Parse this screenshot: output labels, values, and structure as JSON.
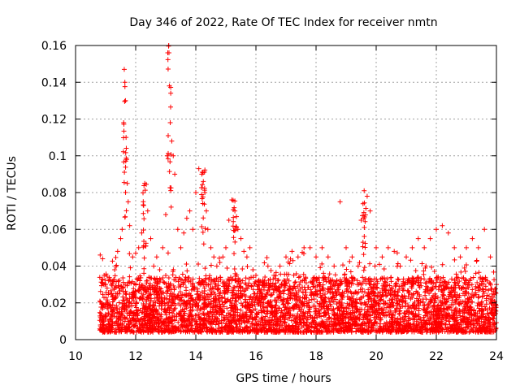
{
  "chart_data": {
    "type": "scatter",
    "title": "Day 346 of 2022, Rate Of TEC Index for receiver nmtn",
    "xlabel": "GPS time / hours",
    "ylabel": "ROTI / TECUs",
    "xlim": [
      10,
      24
    ],
    "ylim": [
      0,
      0.16
    ],
    "xticks": [
      10,
      12,
      14,
      16,
      18,
      20,
      22,
      24
    ],
    "xtick_labels": [
      "10",
      "12",
      "14",
      "16",
      "18",
      "20",
      "22",
      "24"
    ],
    "yticks": [
      0,
      0.02,
      0.04,
      0.06,
      0.08,
      0.1,
      0.12,
      0.14,
      0.16
    ],
    "ytick_labels": [
      "0",
      "0.02",
      "0.04",
      "0.06",
      "0.08",
      "0.1",
      "0.12",
      "0.14",
      "0.16"
    ],
    "grid": true,
    "marker": "plus",
    "color": "#ff0000",
    "series": [
      {
        "name": "ROTI",
        "description_of_density": "dense band 0.005-0.03 TECU/s from 10.8h to 24h",
        "x": [
          10.82,
          10.9,
          10.95,
          11.0,
          11.05,
          11.1,
          11.2,
          11.3,
          11.4,
          11.5,
          11.55,
          11.6,
          11.62,
          11.64,
          11.66,
          11.68,
          11.7,
          11.72,
          11.75,
          11.8,
          11.9,
          12.0,
          12.1,
          12.2,
          12.3,
          12.4,
          12.5,
          12.6,
          12.7,
          12.8,
          12.9,
          13.0,
          13.05,
          13.1,
          13.12,
          13.15,
          13.2,
          13.25,
          13.3,
          13.4,
          13.5,
          13.6,
          13.7,
          13.8,
          13.9,
          14.0,
          14.1,
          14.2,
          14.25,
          14.3,
          14.35,
          14.4,
          14.5,
          14.6,
          14.7,
          14.8,
          14.9,
          15.0,
          15.1,
          15.2,
          15.3,
          15.4,
          15.5,
          15.6,
          15.7,
          15.8,
          15.9,
          16.0,
          16.2,
          16.4,
          16.6,
          16.8,
          17.0,
          17.2,
          17.4,
          17.6,
          17.8,
          18.0,
          18.2,
          18.4,
          18.6,
          18.8,
          19.0,
          19.2,
          19.4,
          19.5,
          19.6,
          19.7,
          19.8,
          20.0,
          20.2,
          20.4,
          20.6,
          20.8,
          21.0,
          21.2,
          21.4,
          21.6,
          21.8,
          22.0,
          22.2,
          22.4,
          22.6,
          22.8,
          23.0,
          23.2,
          23.4,
          23.6,
          23.8,
          24.0
        ],
        "y": [
          0.046,
          0.044,
          0.035,
          0.03,
          0.028,
          0.032,
          0.025,
          0.038,
          0.048,
          0.055,
          0.06,
          0.118,
          0.147,
          0.14,
          0.13,
          0.11,
          0.098,
          0.085,
          0.075,
          0.062,
          0.045,
          0.047,
          0.05,
          0.058,
          0.085,
          0.07,
          0.055,
          0.04,
          0.045,
          0.038,
          0.05,
          0.068,
          0.1,
          0.16,
          0.138,
          0.118,
          0.108,
          0.1,
          0.09,
          0.06,
          0.05,
          0.058,
          0.066,
          0.07,
          0.06,
          0.08,
          0.093,
          0.09,
          0.086,
          0.08,
          0.07,
          0.06,
          0.05,
          0.045,
          0.04,
          0.042,
          0.045,
          0.05,
          0.065,
          0.076,
          0.07,
          0.06,
          0.055,
          0.048,
          0.045,
          0.05,
          0.038,
          0.035,
          0.03,
          0.04,
          0.035,
          0.04,
          0.045,
          0.048,
          0.045,
          0.05,
          0.05,
          0.045,
          0.05,
          0.045,
          0.04,
          0.075,
          0.05,
          0.045,
          0.04,
          0.065,
          0.081,
          0.078,
          0.07,
          0.05,
          0.045,
          0.05,
          0.048,
          0.04,
          0.045,
          0.05,
          0.055,
          0.05,
          0.055,
          0.06,
          0.062,
          0.058,
          0.05,
          0.045,
          0.05,
          0.055,
          0.05,
          0.06,
          0.045,
          0.03
        ]
      }
    ]
  }
}
